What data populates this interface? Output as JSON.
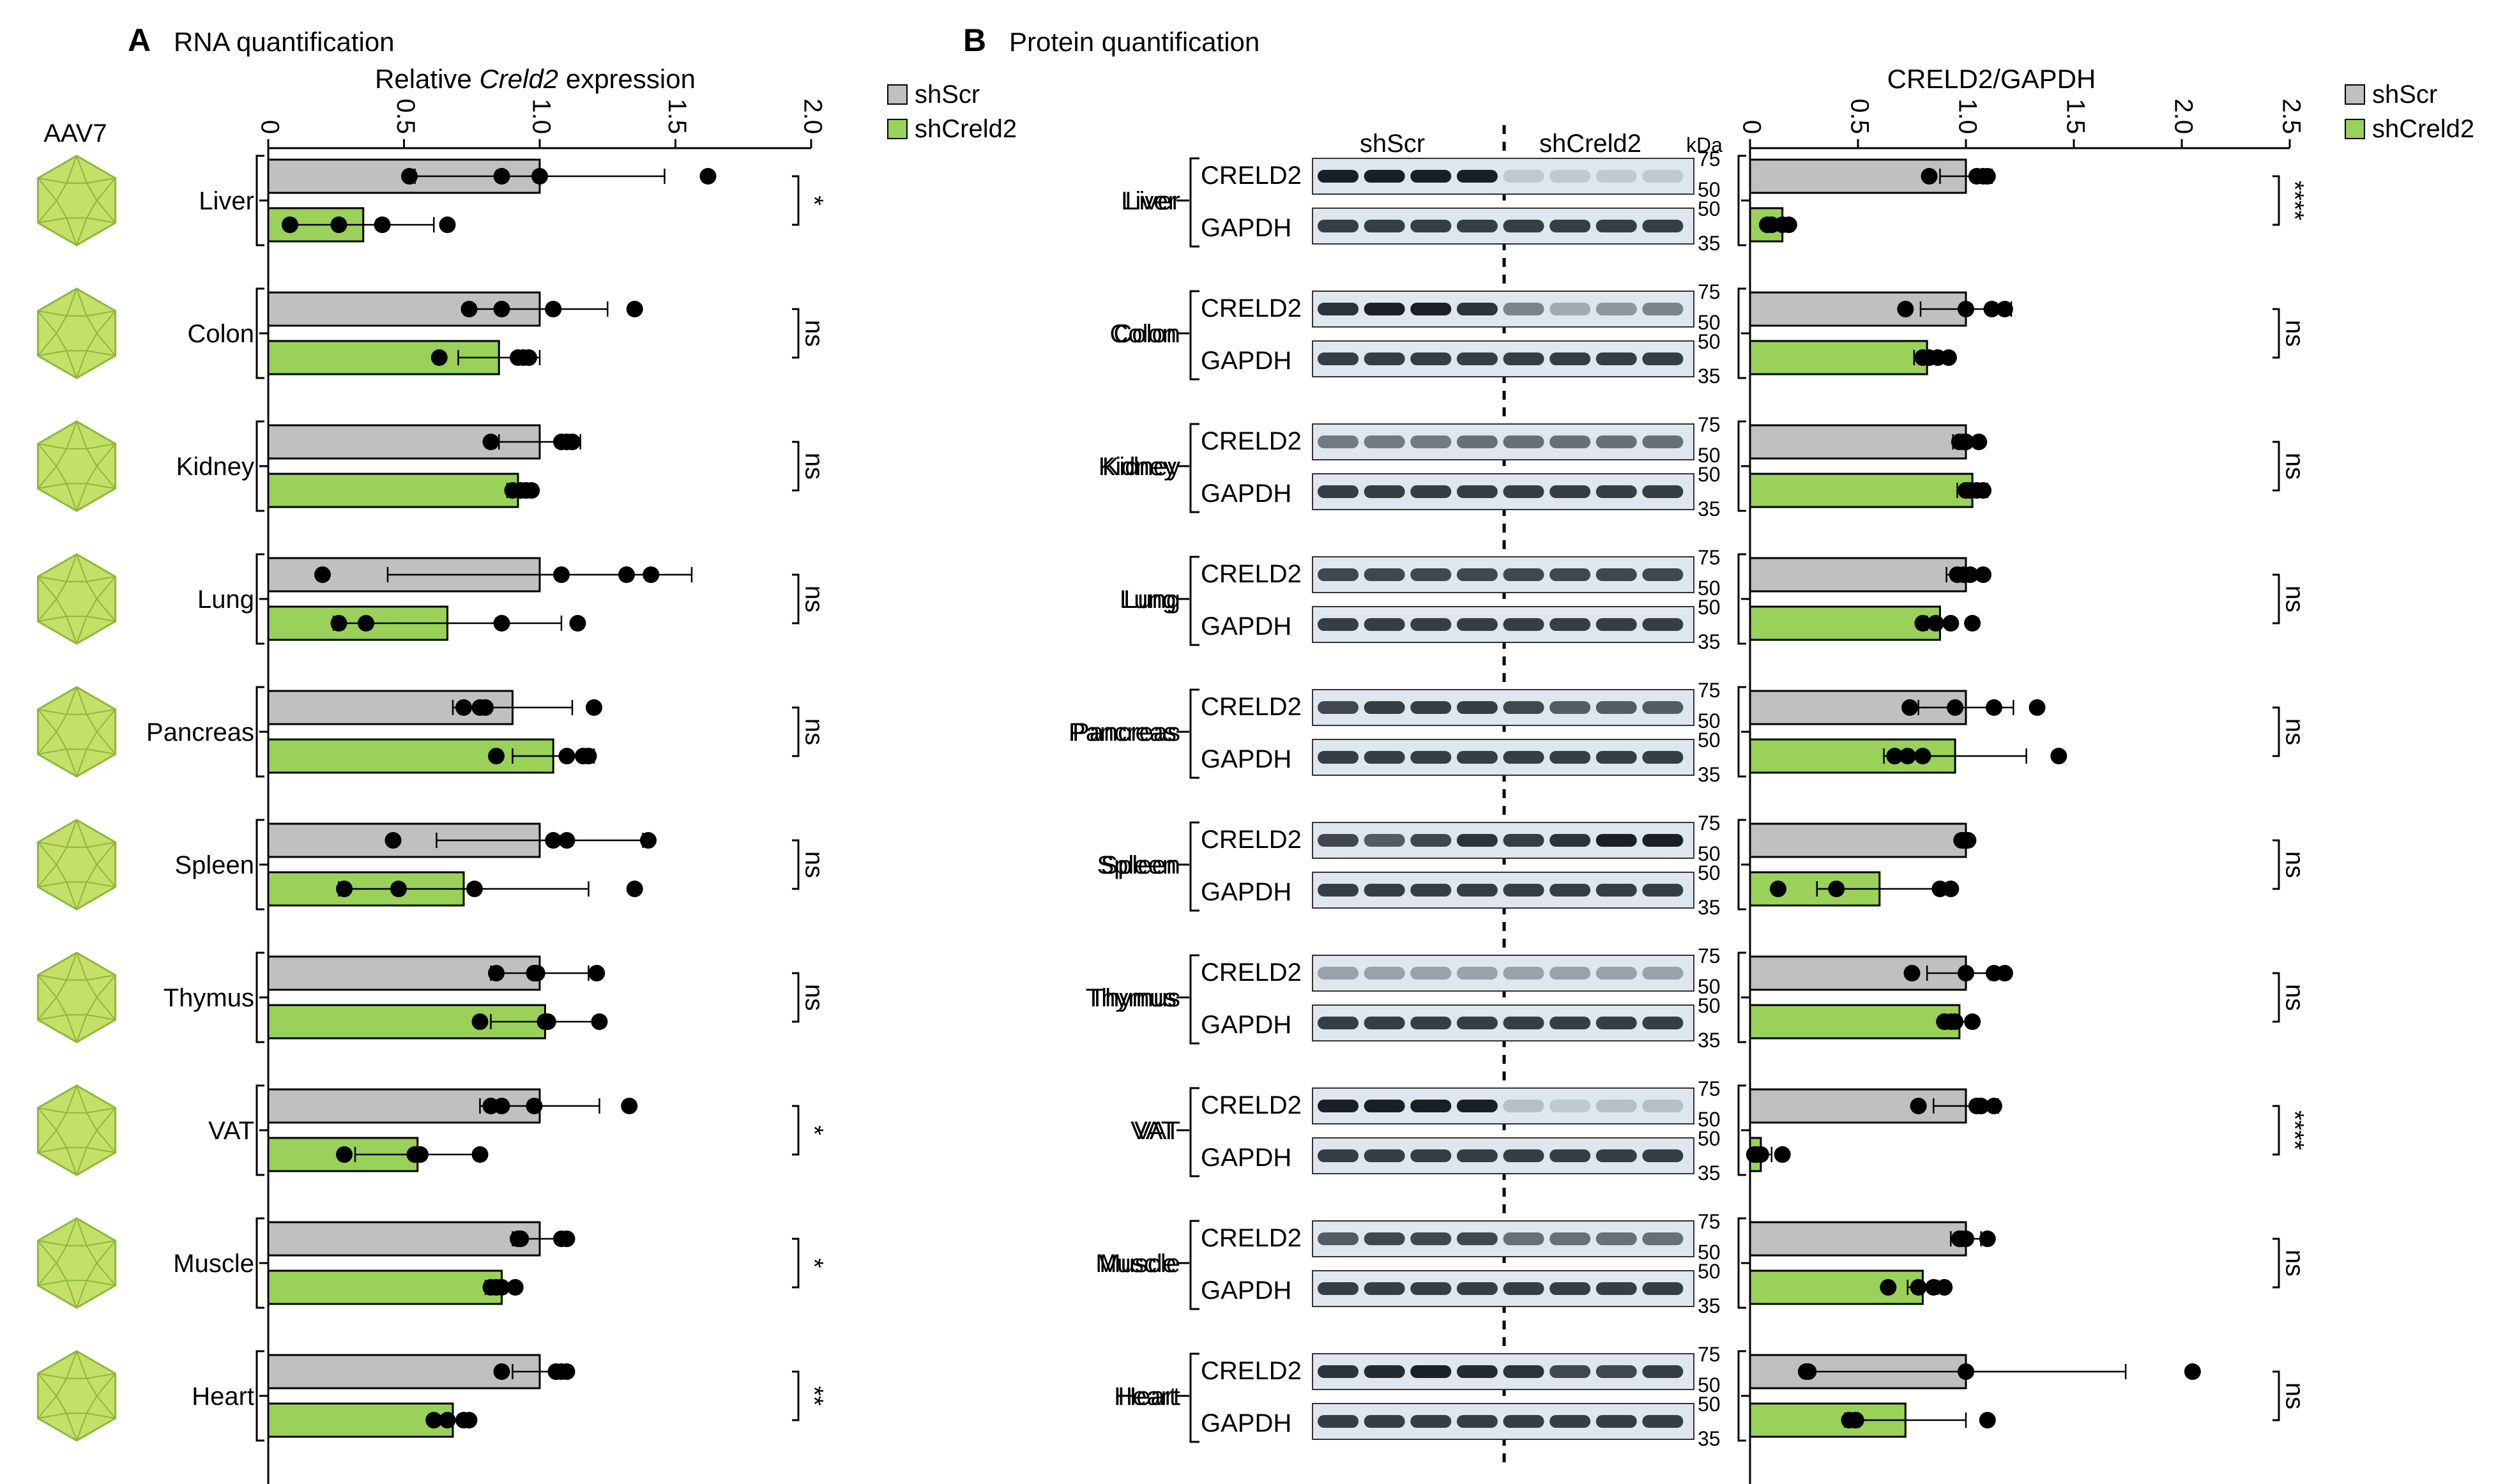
{
  "panelA": {
    "letter": "A",
    "title": "RNA quantification",
    "xlabel_pre": "Relative ",
    "xlabel_gene": "Creld2",
    "xlabel_post": " expression",
    "virus_label": "AAV7"
  },
  "panelB": {
    "letter": "B",
    "title": "Protein quantification",
    "blot_group1": "shScr",
    "blot_group2": "shCreld2",
    "kda_label": "kDa",
    "band_top": "CRELD2",
    "band_bottom": "GAPDH",
    "markers_top": [
      "75",
      "50"
    ],
    "markers_bottom": [
      "50",
      "35"
    ],
    "xlabel": "CRELD2/GAPDH"
  },
  "legend": {
    "items": [
      {
        "name": "shScr",
        "color": "#c0c0c0"
      },
      {
        "name": "shCreld2",
        "color": "#99d159"
      }
    ]
  },
  "colors": {
    "shScr": "#c0c0c0",
    "shCreld2": "#99d159",
    "virus_fill": "#c4e069",
    "virus_stroke": "#8fb83a",
    "blot_bg": "#dfe7ee",
    "band": "#1a1f26"
  },
  "chart_data": [
    {
      "type": "bar",
      "title": "RNA quantification",
      "xlabel": "Relative Creld2 expression",
      "orientation": "horizontal",
      "xlim": [
        0,
        2.0
      ],
      "ticks": [
        "0",
        "0.5",
        "1.0",
        "1.5",
        "2.0"
      ],
      "categories": [
        "Liver",
        "Colon",
        "Kidney",
        "Lung",
        "Pancreas",
        "Spleen",
        "Thymus",
        "VAT",
        "Muscle",
        "Heart"
      ],
      "series": [
        {
          "name": "shScr",
          "values": [
            1.0,
            1.0,
            1.0,
            1.0,
            0.9,
            1.0,
            1.0,
            1.0,
            1.0,
            1.0
          ],
          "errors": [
            0.46,
            0.25,
            0.15,
            0.56,
            0.22,
            0.38,
            0.18,
            0.22,
            0.1,
            0.1
          ],
          "points": [
            [
              0.52,
              0.86,
              1.0,
              1.62
            ],
            [
              0.74,
              0.86,
              1.05,
              1.35
            ],
            [
              0.82,
              1.08,
              1.1,
              1.12
            ],
            [
              0.2,
              1.08,
              1.32,
              1.41
            ],
            [
              0.72,
              0.78,
              0.8,
              1.2
            ],
            [
              0.46,
              1.05,
              1.1,
              1.4
            ],
            [
              0.84,
              0.98,
              0.99,
              1.21
            ],
            [
              0.82,
              0.86,
              0.98,
              1.33
            ],
            [
              0.92,
              0.93,
              1.08,
              1.1
            ],
            [
              0.86,
              1.06,
              1.08,
              1.1
            ]
          ]
        },
        {
          "name": "shCreld2",
          "values": [
            0.35,
            0.85,
            0.92,
            0.66,
            1.05,
            0.72,
            1.02,
            0.55,
            0.86,
            0.68
          ],
          "errors": [
            0.26,
            0.15,
            0.04,
            0.42,
            0.15,
            0.46,
            0.2,
            0.23,
            0.06,
            0.07
          ],
          "points": [
            [
              0.08,
              0.26,
              0.42,
              0.66
            ],
            [
              0.63,
              0.92,
              0.94,
              0.96
            ],
            [
              0.9,
              0.93,
              0.95,
              0.97
            ],
            [
              0.26,
              0.36,
              0.86,
              1.14
            ],
            [
              0.84,
              1.1,
              1.16,
              1.18
            ],
            [
              0.28,
              0.48,
              0.76,
              1.35
            ],
            [
              0.78,
              1.02,
              1.03,
              1.22
            ],
            [
              0.28,
              0.54,
              0.56,
              0.78
            ],
            [
              0.82,
              0.84,
              0.86,
              0.91
            ],
            [
              0.61,
              0.66,
              0.72,
              0.74
            ]
          ]
        }
      ],
      "significance": [
        "*",
        "ns",
        "ns",
        "ns",
        "ns",
        "ns",
        "ns",
        "*",
        "*",
        "**"
      ]
    },
    {
      "type": "bar",
      "title": "Protein quantification",
      "xlabel": "CRELD2/GAPDH",
      "orientation": "horizontal",
      "xlim": [
        0,
        2.5
      ],
      "ticks": [
        "0",
        "0.5",
        "1.0",
        "1.5",
        "2.0",
        "2.5"
      ],
      "categories": [
        "Liver",
        "Colon",
        "Kidney",
        "Lung",
        "Pancreas",
        "Spleen",
        "Thymus",
        "VAT",
        "Muscle",
        "Heart"
      ],
      "series": [
        {
          "name": "shScr",
          "values": [
            1.0,
            1.0,
            1.0,
            1.0,
            1.0,
            1.0,
            1.0,
            1.0,
            1.0,
            1.0
          ],
          "errors": [
            0.12,
            0.21,
            0.06,
            0.09,
            0.22,
            0.02,
            0.18,
            0.15,
            0.07,
            0.74
          ],
          "points": [
            [
              0.83,
              1.05,
              1.08,
              1.1
            ],
            [
              0.72,
              1.0,
              1.12,
              1.18
            ],
            [
              0.97,
              0.99,
              1.0,
              1.06
            ],
            [
              0.96,
              0.99,
              1.02,
              1.08
            ],
            [
              0.74,
              0.95,
              1.13,
              1.33
            ],
            [
              0.98,
              0.99,
              1.0,
              1.01
            ],
            [
              0.75,
              1.0,
              1.13,
              1.18
            ],
            [
              0.78,
              1.05,
              1.07,
              1.13
            ],
            [
              0.97,
              0.98,
              1.0,
              1.1
            ],
            [
              0.26,
              0.27,
              1.0,
              2.05
            ]
          ]
        },
        {
          "name": "shCreld2",
          "values": [
            0.15,
            0.82,
            1.03,
            0.88,
            0.95,
            0.6,
            0.97,
            0.05,
            0.8,
            0.72
          ],
          "errors": [
            0.04,
            0.06,
            0.07,
            0.06,
            0.33,
            0.29,
            0.05,
            0.05,
            0.07,
            0.28
          ],
          "points": [
            [
              0.08,
              0.1,
              0.15,
              0.18
            ],
            [
              0.8,
              0.83,
              0.87,
              0.92
            ],
            [
              1.0,
              1.02,
              1.05,
              1.08
            ],
            [
              0.8,
              0.86,
              0.93,
              1.03
            ],
            [
              0.67,
              0.73,
              0.8,
              1.43
            ],
            [
              0.13,
              0.4,
              0.88,
              0.93
            ],
            [
              0.9,
              0.93,
              0.95,
              1.03
            ],
            [
              0.02,
              0.03,
              0.05,
              0.15
            ],
            [
              0.64,
              0.78,
              0.85,
              0.9
            ],
            [
              0.46,
              0.49,
              0.49,
              1.1
            ]
          ]
        }
      ],
      "significance": [
        "****",
        "ns",
        "ns",
        "ns",
        "ns",
        "ns",
        "ns",
        "****",
        "ns",
        "ns"
      ]
    }
  ]
}
